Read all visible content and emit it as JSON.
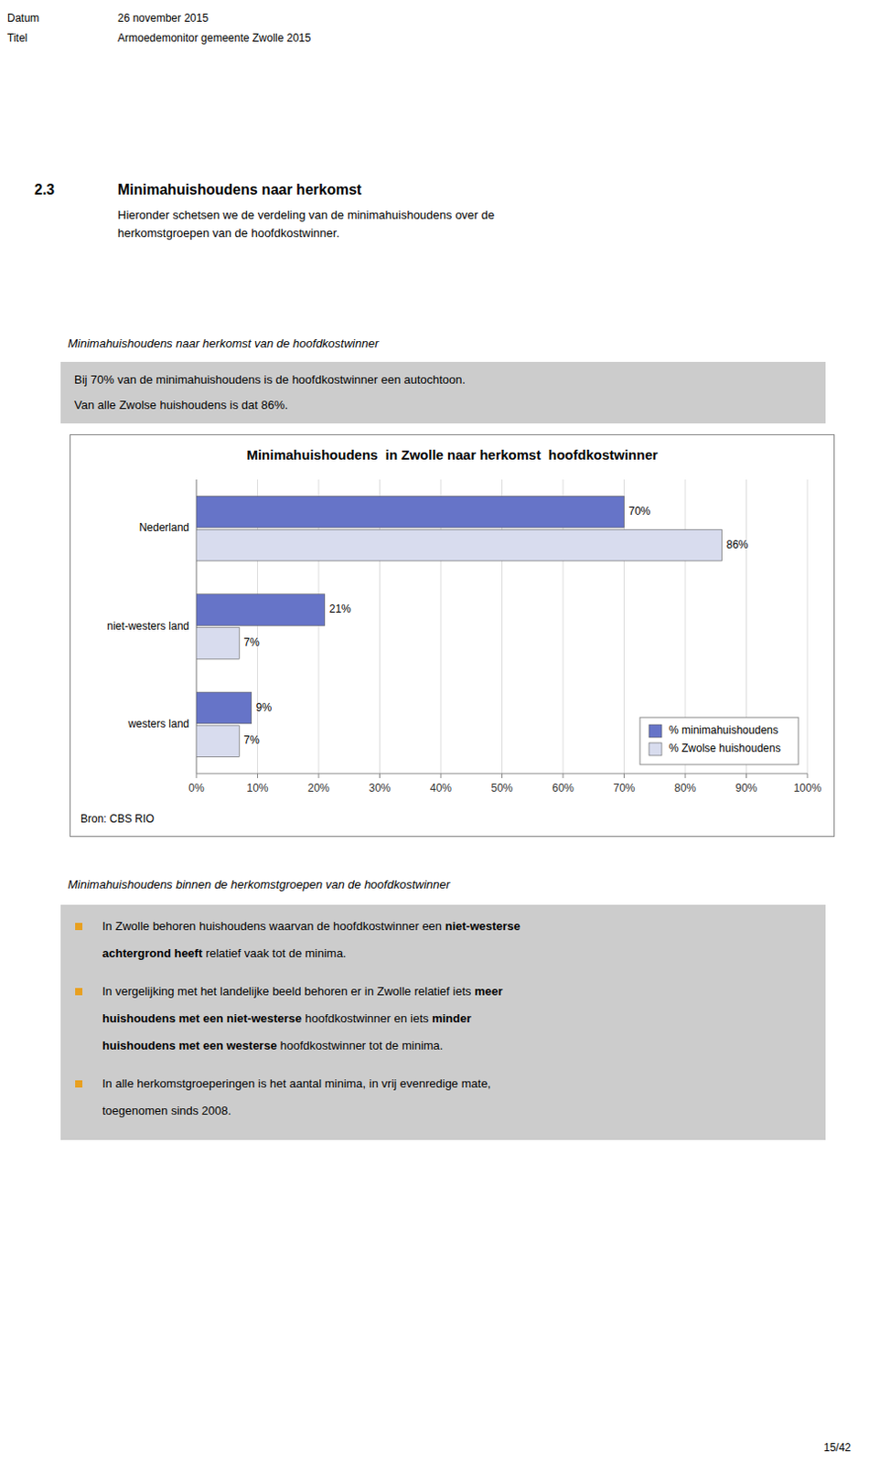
{
  "page": {
    "background_color": "#ffffff",
    "header": [
      {
        "label": "Datum",
        "value": "26 november 2015"
      },
      {
        "label": "Titel",
        "value": "Armoedemonitor gemeente Zwolle 2015"
      }
    ],
    "section_number": "2.3",
    "section_title": "Minimahuishoudens naar herkomst",
    "intro": [
      "Hieronder schetsen we de verdeling van de minimahuishoudens over de",
      "herkomstgroepen van de hoofdkostwinner."
    ],
    "subsection_1": "Minimahuishoudens naar herkomst van de hoofdkostwinner",
    "highlight_color": "#CCCCCC",
    "highlight": [
      "Bij 70% van de minimahuishoudens is de hoofdkostwinner een autochtoon.",
      "Van alle Zwolse huishoudens is dat 86%."
    ],
    "source": "Bron: CBS RIO",
    "subsection_2": "Minimahuishoudens binnen de herkomstgroepen van de hoofdkostwinner",
    "bullet_box_color": "#CCCCCC",
    "bullet_color": "#E8A020",
    "bullets": [
      [
        [
          {
            "text": "In Zwolle behoren huishoudens waarvan de hoofdkostwinner een "
          },
          {
            "text": "niet-westerse",
            "bold": true
          }
        ],
        [
          {
            "text": "achtergrond heeft",
            "bold": true
          },
          {
            "text": " relatief vaak tot de minima."
          }
        ]
      ],
      [
        [
          {
            "text": "In vergelijking met het landelijke beeld behoren er in Zwolle relatief iets "
          },
          {
            "text": "meer",
            "bold": true
          }
        ],
        [
          {
            "text": "huishoudens met een niet-westerse",
            "bold": true
          },
          {
            "text": " hoofdkostwinner en iets "
          },
          {
            "text": "minder",
            "bold": true
          }
        ],
        [
          {
            "text": "huishoudens met een westerse",
            "bold": true
          },
          {
            "text": " hoofdkostwinner tot de minima."
          }
        ]
      ],
      [
        [
          {
            "text": "In alle herkomstgroeperingen is het aantal minima, in vrij evenredige mate,"
          }
        ],
        [
          {
            "text": "toegenomen sinds 2008."
          }
        ]
      ]
    ],
    "page_number": "15/42"
  },
  "chart_data": {
    "type": "bar",
    "orientation": "horizontal",
    "title": "Minimahuishoudens  in Zwolle naar herkomst  hoofdkostwinner",
    "categories": [
      "Nederland",
      "niet-westers land",
      "westers land"
    ],
    "series": [
      {
        "name": "% minimahuishoudens",
        "color": "#6674C8",
        "values": [
          70,
          21,
          9
        ],
        "value_labels": [
          "70%",
          "21%",
          "9%"
        ]
      },
      {
        "name": "% Zwolse huishoudens",
        "color": "#D8DCEE",
        "values": [
          86,
          7,
          7
        ],
        "value_labels": [
          "86%",
          "7%",
          "7%"
        ]
      }
    ],
    "xlim": [
      0,
      100
    ],
    "xticks": [
      {
        "value": 0,
        "label": "0%"
      },
      {
        "value": 10,
        "label": "10%"
      },
      {
        "value": 20,
        "label": "20%"
      },
      {
        "value": 30,
        "label": "30%"
      },
      {
        "value": 40,
        "label": "40%"
      },
      {
        "value": 50,
        "label": "50%"
      },
      {
        "value": 60,
        "label": "60%"
      },
      {
        "value": 70,
        "label": "70%"
      },
      {
        "value": 80,
        "label": "80%"
      },
      {
        "value": 90,
        "label": "90%"
      },
      {
        "value": 100,
        "label": "100%"
      }
    ],
    "grid": true,
    "legend": "lower right",
    "data_labels": true
  }
}
